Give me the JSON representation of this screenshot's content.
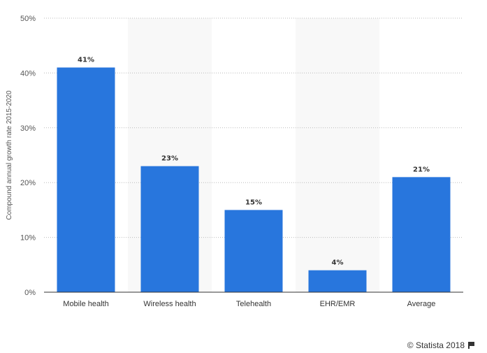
{
  "chart_data": {
    "type": "bar",
    "categories": [
      "Mobile health",
      "Wireless health",
      "Telehealth",
      "EHR/EMR",
      "Average"
    ],
    "values": [
      41,
      23,
      15,
      4,
      21
    ],
    "data_labels": [
      "41%",
      "23%",
      "15%",
      "4%",
      "21%"
    ],
    "ylabel": "Compound annual growth rate 2015-2020",
    "xlabel": "",
    "ylim": [
      0,
      50
    ],
    "yticks": [
      0,
      10,
      20,
      30,
      40,
      50
    ],
    "ytick_labels": [
      "0%",
      "10%",
      "20%",
      "30%",
      "40%",
      "50%"
    ],
    "grid": true,
    "bar_color": "#2876dd",
    "band_color": "#f8f8f8"
  },
  "credit": {
    "text": "© Statista 2018",
    "icon": "flag-icon"
  }
}
